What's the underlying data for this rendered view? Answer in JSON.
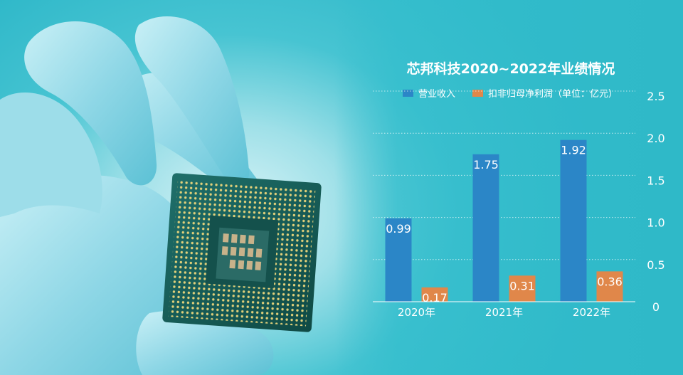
{
  "chart_data": {
    "type": "bar",
    "title": "芯邦科技2020~2022年业绩情况",
    "categories": [
      "2020年",
      "2021年",
      "2022年"
    ],
    "series": [
      {
        "name": "营业收入",
        "values": [
          0.99,
          1.75,
          1.92
        ],
        "color": "#2b86c7"
      },
      {
        "name": "扣非归母净利润（单位：亿元）",
        "values": [
          0.17,
          0.31,
          0.36
        ],
        "color": "#e0874a"
      }
    ],
    "ylim": [
      0,
      2.5
    ],
    "yticks": [
      "0",
      "0.5",
      "1.0",
      "1.5",
      "2.0",
      "2.5"
    ],
    "grid": true,
    "legend": "top"
  }
}
